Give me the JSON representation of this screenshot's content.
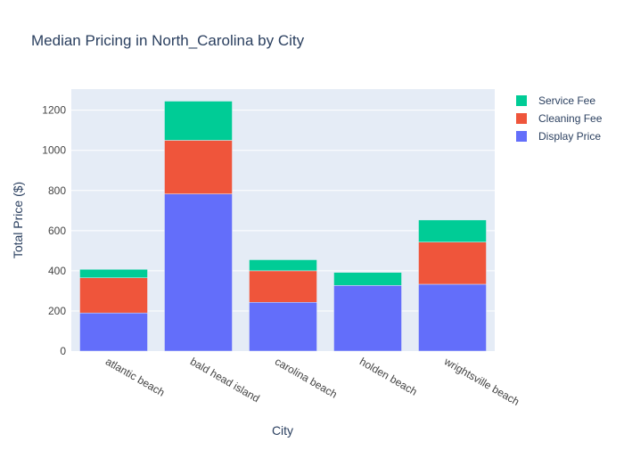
{
  "chart_data": {
    "type": "bar",
    "barmode": "stack",
    "title": "Median Pricing in North_Carolina by City",
    "xlabel": "City",
    "ylabel": "Total Price ($)",
    "categories": [
      "atlantic beach",
      "bald head island",
      "carolina beach",
      "holden beach",
      "wrightsville beach"
    ],
    "yticks": [
      0,
      200,
      400,
      600,
      800,
      1000,
      1200
    ],
    "ylim": [
      0,
      1305
    ],
    "grid": true,
    "legend_position": "top-right",
    "series": [
      {
        "name": "Display Price",
        "color": "#636efa",
        "values": [
          190,
          783,
          243,
          327,
          333
        ]
      },
      {
        "name": "Cleaning Fee",
        "color": "#ef553b",
        "values": [
          175,
          267,
          157,
          0,
          210
        ]
      },
      {
        "name": "Service Fee",
        "color": "#00cc96",
        "values": [
          42,
          195,
          55,
          65,
          110
        ]
      }
    ],
    "legend_order": [
      "Service Fee",
      "Cleaning Fee",
      "Display Price"
    ]
  },
  "colors": {
    "plot_background": "#e5ecf6",
    "grid": "#ffffff",
    "text": "#2a3f5f",
    "tick_text": "#444444"
  }
}
